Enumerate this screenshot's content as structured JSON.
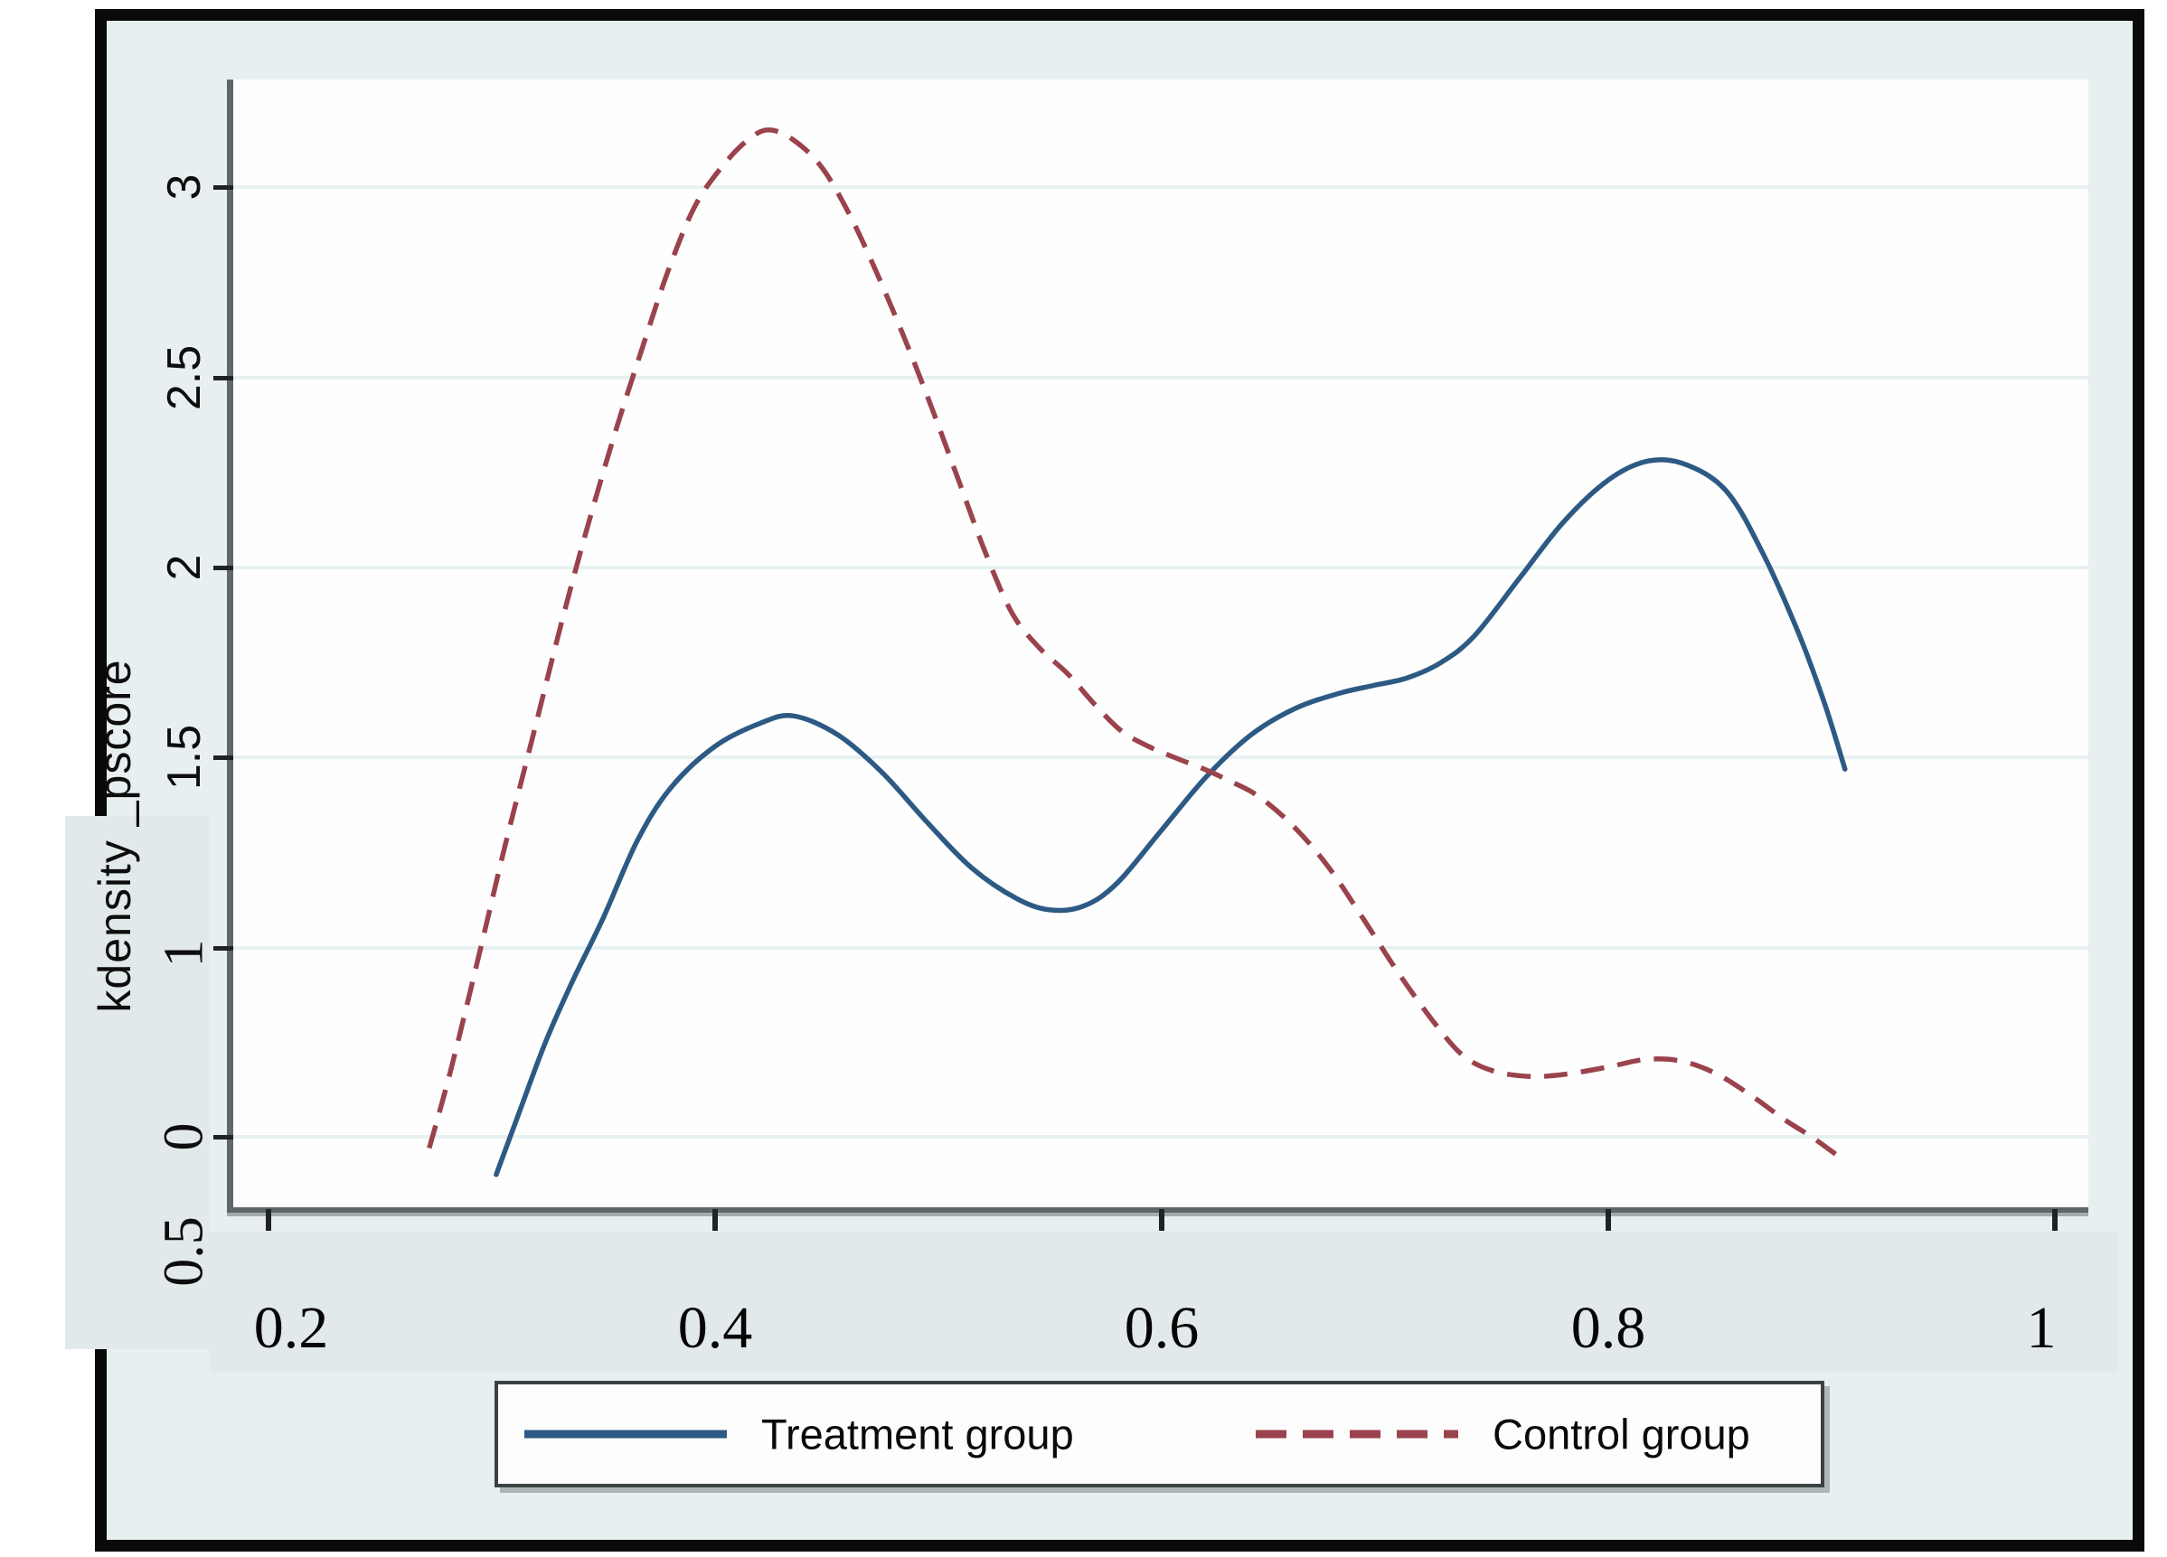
{
  "figure": {
    "y_axis_title": "kdensity _pscore",
    "background_color": "#e8eff0",
    "plot_background_color": "#fefefe",
    "frame_border_color": "#0a0a0a",
    "gridline_color": "#e7f1f2",
    "axis_line_color": "#5f676a"
  },
  "y_axis": {
    "tick_labels": [
      "3",
      "2.5",
      "2",
      "1.5",
      "1",
      "0"
    ],
    "extra_label_below_axis": "0.5"
  },
  "x_axis": {
    "tick_labels": [
      "0.2",
      "0.4",
      "0.6",
      "0.8",
      "1"
    ]
  },
  "legend": {
    "treatment_swatch": "solid-line",
    "control_swatch": "dashed-line"
  },
  "chart_data": {
    "type": "line",
    "title": "",
    "xlabel": "",
    "ylabel": "kdensity _pscore",
    "x_ticks": [
      0.2,
      0.4,
      0.6,
      0.8,
      1.0
    ],
    "y_ticks": [
      0,
      1,
      1.5,
      2,
      2.5,
      3
    ],
    "xlim": [
      0.18,
      1.02
    ],
    "ylim": [
      -0.4,
      3.35
    ],
    "grid": "horizontal",
    "legend_position": "bottom",
    "series": [
      {
        "name": "Treatment group",
        "style": "solid",
        "color": "#2d5a84",
        "points": [
          [
            0.302,
            -0.2
          ],
          [
            0.312,
            0.12
          ],
          [
            0.324,
            0.5
          ],
          [
            0.336,
            0.82
          ],
          [
            0.35,
            1.08
          ],
          [
            0.365,
            1.28
          ],
          [
            0.38,
            1.42
          ],
          [
            0.4,
            1.53
          ],
          [
            0.42,
            1.59
          ],
          [
            0.435,
            1.61
          ],
          [
            0.455,
            1.56
          ],
          [
            0.475,
            1.46
          ],
          [
            0.495,
            1.33
          ],
          [
            0.515,
            1.21
          ],
          [
            0.535,
            1.13
          ],
          [
            0.55,
            1.1
          ],
          [
            0.565,
            1.11
          ],
          [
            0.58,
            1.17
          ],
          [
            0.6,
            1.31
          ],
          [
            0.62,
            1.45
          ],
          [
            0.64,
            1.56
          ],
          [
            0.66,
            1.63
          ],
          [
            0.68,
            1.67
          ],
          [
            0.695,
            1.69
          ],
          [
            0.71,
            1.71
          ],
          [
            0.725,
            1.75
          ],
          [
            0.74,
            1.82
          ],
          [
            0.76,
            1.97
          ],
          [
            0.78,
            2.12
          ],
          [
            0.8,
            2.23
          ],
          [
            0.818,
            2.28
          ],
          [
            0.835,
            2.27
          ],
          [
            0.853,
            2.2
          ],
          [
            0.869,
            2.04
          ],
          [
            0.885,
            1.83
          ],
          [
            0.897,
            1.64
          ],
          [
            0.906,
            1.47
          ]
        ]
      },
      {
        "name": "Control group",
        "style": "dashed",
        "color": "#9a434c",
        "points": [
          [
            0.272,
            -0.06
          ],
          [
            0.282,
            0.37
          ],
          [
            0.294,
            0.95
          ],
          [
            0.306,
            1.27
          ],
          [
            0.319,
            1.57
          ],
          [
            0.331,
            1.85
          ],
          [
            0.343,
            2.11
          ],
          [
            0.355,
            2.35
          ],
          [
            0.367,
            2.57
          ],
          [
            0.379,
            2.78
          ],
          [
            0.391,
            2.95
          ],
          [
            0.404,
            3.06
          ],
          [
            0.416,
            3.13
          ],
          [
            0.425,
            3.15
          ],
          [
            0.436,
            3.12
          ],
          [
            0.448,
            3.05
          ],
          [
            0.46,
            2.93
          ],
          [
            0.472,
            2.78
          ],
          [
            0.485,
            2.6
          ],
          [
            0.497,
            2.42
          ],
          [
            0.509,
            2.23
          ],
          [
            0.521,
            2.04
          ],
          [
            0.533,
            1.88
          ],
          [
            0.545,
            1.79
          ],
          [
            0.558,
            1.72
          ],
          [
            0.57,
            1.64
          ],
          [
            0.582,
            1.57
          ],
          [
            0.594,
            1.53
          ],
          [
            0.606,
            1.5
          ],
          [
            0.619,
            1.47
          ],
          [
            0.63,
            1.44
          ],
          [
            0.643,
            1.4
          ],
          [
            0.659,
            1.32
          ],
          [
            0.675,
            1.21
          ],
          [
            0.691,
            1.07
          ],
          [
            0.707,
            0.85
          ],
          [
            0.723,
            0.59
          ],
          [
            0.735,
            0.43
          ],
          [
            0.748,
            0.35
          ],
          [
            0.764,
            0.32
          ],
          [
            0.78,
            0.33
          ],
          [
            0.8,
            0.37
          ],
          [
            0.817,
            0.41
          ],
          [
            0.833,
            0.4
          ],
          [
            0.849,
            0.33
          ],
          [
            0.865,
            0.21
          ],
          [
            0.879,
            0.09
          ],
          [
            0.891,
            0.0
          ],
          [
            0.905,
            -0.12
          ]
        ]
      }
    ]
  }
}
